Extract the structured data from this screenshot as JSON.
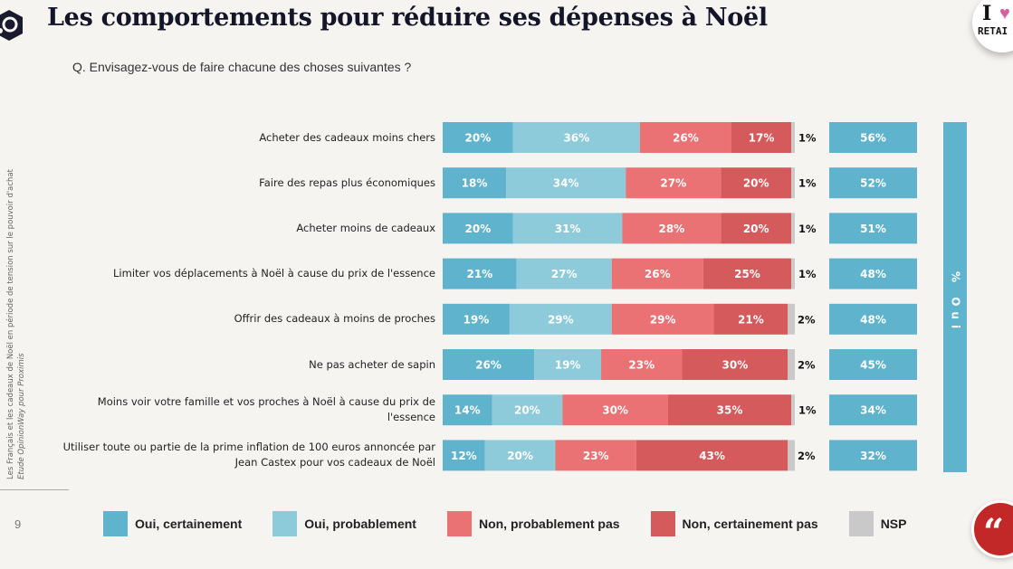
{
  "header": {
    "title": "Les comportements pour réduire ses dépenses à Noël",
    "question": "Q. Envisagez-vous de faire chacune des choses suivantes ?",
    "badge_top": "I",
    "badge_bottom": "RETAI"
  },
  "sidebar": {
    "study_title": "Les Français et les cadeaux de Noël en période de tension sur le pouvoir d'achat",
    "study_source": "Etude OpinionWay pour Proximis",
    "page_number": "9"
  },
  "colors": {
    "oui_certainement": "#5fb3cc",
    "oui_probablement": "#8ecbda",
    "non_probablement_pas": "#ea7274",
    "non_certainement_pas": "#d55a5b",
    "nsp": "#c9c9c9",
    "total_oui": "#5fb3cc",
    "quote_button": "#c32828"
  },
  "chart_data": {
    "type": "bar",
    "orientation": "horizontal-stacked-100",
    "title": "Les comportements pour réduire ses dépenses à Noël",
    "subtitle": "Q. Envisagez-vous de faire chacune des choses suivantes ?",
    "categories": [
      "Acheter des cadeaux moins chers",
      "Faire des repas plus économiques",
      "Acheter moins de cadeaux",
      "Limiter vos déplacements à Noël à cause du prix de l'essence",
      "Offrir des cadeaux à moins de proches",
      "Ne pas acheter de sapin",
      "Moins voir votre famille et vos proches à Noël à cause du prix de l'essence",
      "Utiliser toute ou partie de la prime inflation de 100 euros annoncée par Jean Castex pour vos cadeaux de Noël"
    ],
    "series": [
      {
        "name": "Oui, certainement",
        "values": [
          20,
          18,
          20,
          21,
          19,
          26,
          14,
          12
        ]
      },
      {
        "name": "Oui, probablement",
        "values": [
          36,
          34,
          31,
          27,
          29,
          19,
          20,
          20
        ]
      },
      {
        "name": "Non, probablement pas",
        "values": [
          26,
          27,
          28,
          26,
          29,
          23,
          30,
          23
        ]
      },
      {
        "name": "Non, certainement pas",
        "values": [
          17,
          20,
          20,
          25,
          21,
          30,
          35,
          43
        ]
      },
      {
        "name": "NSP",
        "values": [
          1,
          1,
          1,
          1,
          2,
          2,
          1,
          2
        ]
      }
    ],
    "total_oui": {
      "label": "% Oui",
      "values": [
        56,
        52,
        51,
        48,
        48,
        45,
        34,
        32
      ]
    },
    "unit": "%",
    "xlim": [
      0,
      100
    ],
    "legend": {
      "position": "bottom",
      "entries": [
        "Oui, certainement",
        "Oui, probablement",
        "Non, probablement pas",
        "Non, certainement pas",
        "NSP"
      ]
    },
    "grid": false
  }
}
